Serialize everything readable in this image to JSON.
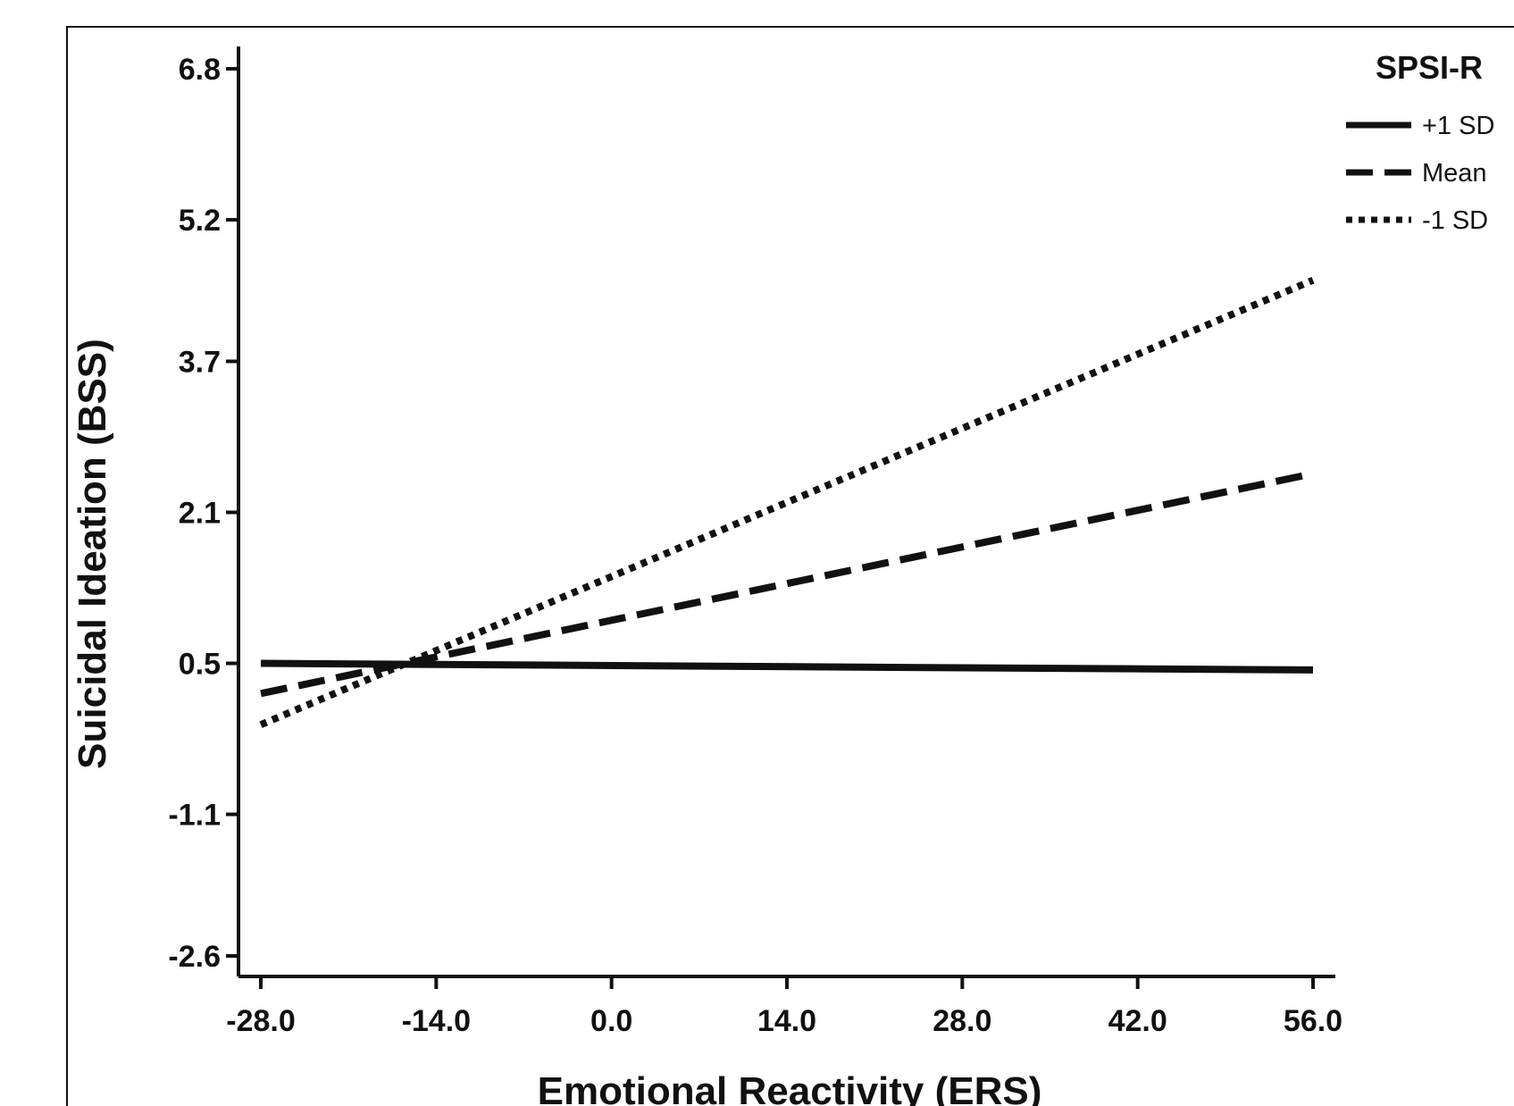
{
  "chart_data": {
    "type": "line",
    "title": "",
    "xlabel": "Emotional Reactivity (ERS)",
    "ylabel": "Suicidal Ideation (BSS)",
    "xlim": [
      -28.0,
      56.0
    ],
    "ylim": [
      -2.6,
      6.8
    ],
    "x_ticks": [
      "-28.0",
      "-14.0",
      "0.0",
      "14.0",
      "28.0",
      "42.0",
      "56.0"
    ],
    "y_ticks": [
      "-2.6",
      "-1.1",
      "0.5",
      "2.1",
      "3.7",
      "5.2",
      "6.8"
    ],
    "x_tick_values": [
      -28,
      -14,
      0,
      14,
      28,
      42,
      56
    ],
    "y_tick_values": [
      -2.6,
      -1.1,
      0.5,
      2.1,
      3.7,
      5.2,
      6.8
    ],
    "grid": false,
    "legend": {
      "title": "SPSI-R",
      "placement": "top-right"
    },
    "series": [
      {
        "name": "+1 SD",
        "style": "solid",
        "x": [
          -28.0,
          56.0
        ],
        "y": [
          0.5,
          0.43
        ]
      },
      {
        "name": "Mean",
        "style": "dashed",
        "x": [
          -28.0,
          56.0
        ],
        "y": [
          0.18,
          2.51
        ]
      },
      {
        "name": "-1 SD",
        "style": "dotted",
        "x": [
          -28.0,
          56.0
        ],
        "y": [
          -0.15,
          4.56
        ]
      }
    ],
    "color": "#111111"
  }
}
